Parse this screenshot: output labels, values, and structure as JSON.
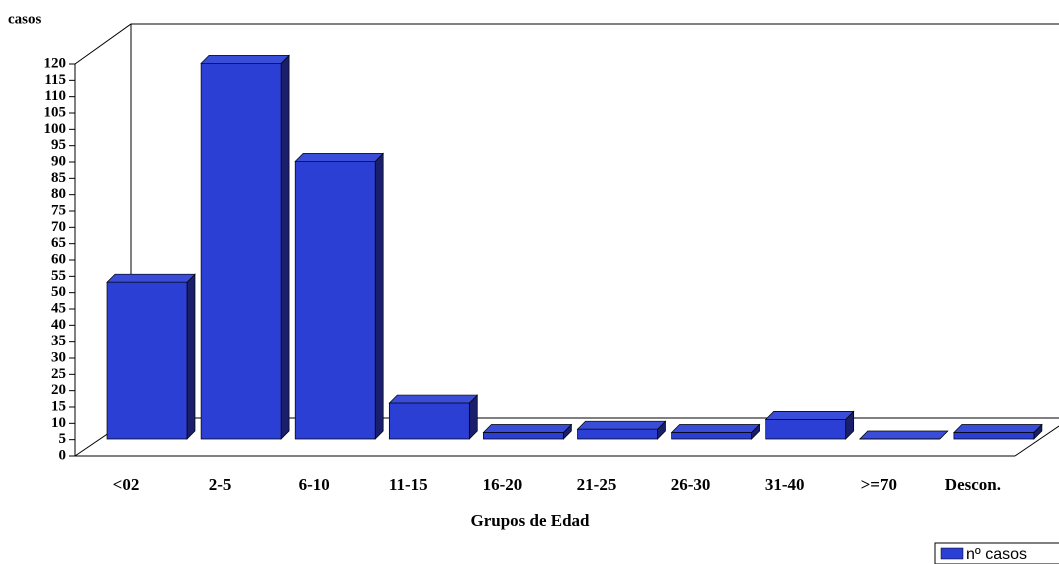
{
  "chart_data": {
    "type": "bar3d",
    "y_label": "casos",
    "x_label": "Grupos de Edad",
    "categories": [
      "<02",
      "2-5",
      "6-10",
      "11-15",
      "16-20",
      "21-25",
      "26-30",
      "31-40",
      ">=70",
      "Descon."
    ],
    "series": [
      {
        "name": "nº casos",
        "color": "#2b3fd4",
        "values": [
          48,
          115,
          85,
          11,
          2,
          3,
          2,
          6,
          0,
          2
        ]
      }
    ],
    "ylim": [
      0,
      120
    ],
    "yticks": [
      0,
      5,
      10,
      15,
      20,
      25,
      30,
      35,
      40,
      45,
      50,
      55,
      60,
      65,
      70,
      75,
      80,
      85,
      90,
      95,
      100,
      105,
      110,
      115,
      120
    ]
  }
}
